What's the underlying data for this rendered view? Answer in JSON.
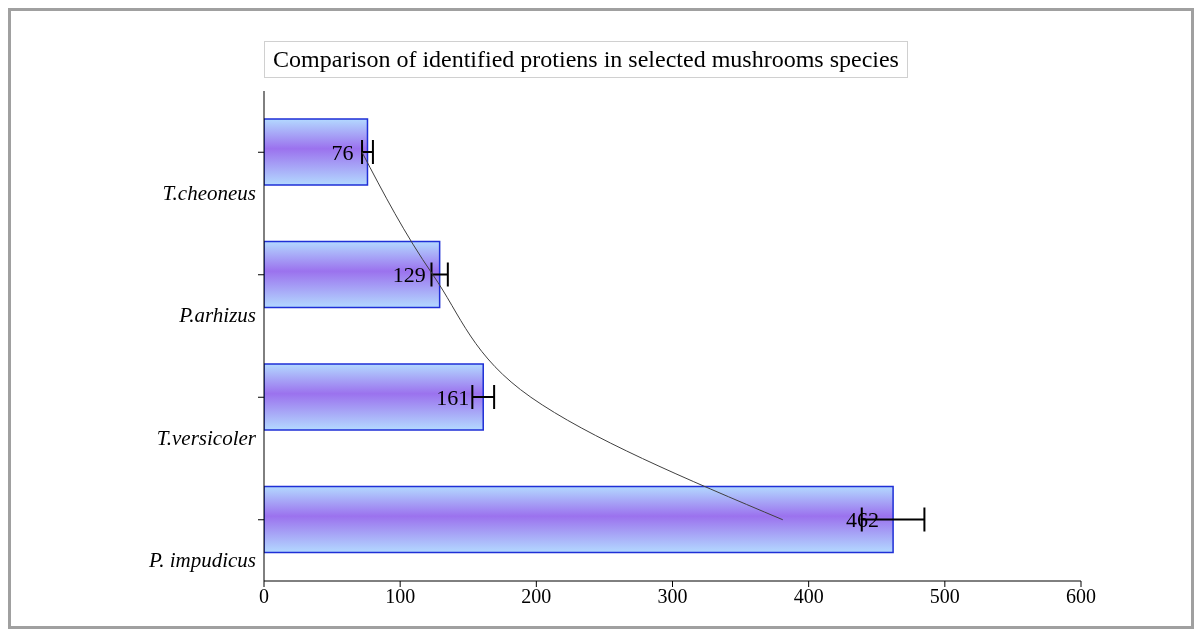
{
  "chart_data": {
    "type": "bar",
    "orientation": "horizontal",
    "title": "Comparison of identified protiens in selected mushrooms species",
    "categories": [
      "T.cheoneus",
      "P.arhizus",
      "T.versicoler",
      "P. impudicus"
    ],
    "series": [
      {
        "color": "#1f2fd6",
        "values": [
          76,
          129,
          161,
          462
        ],
        "errors": [
          4,
          6,
          8,
          23
        ],
        "value_labels": [
          "76",
          "129",
          "161",
          "462"
        ]
      },
      {
        "type": "line",
        "color": "#404040",
        "values": [
          72,
          124,
          196,
          381
        ]
      }
    ],
    "xlim": [
      0,
      600
    ],
    "xticks": [
      0,
      100,
      200,
      300,
      400,
      500,
      600
    ]
  }
}
